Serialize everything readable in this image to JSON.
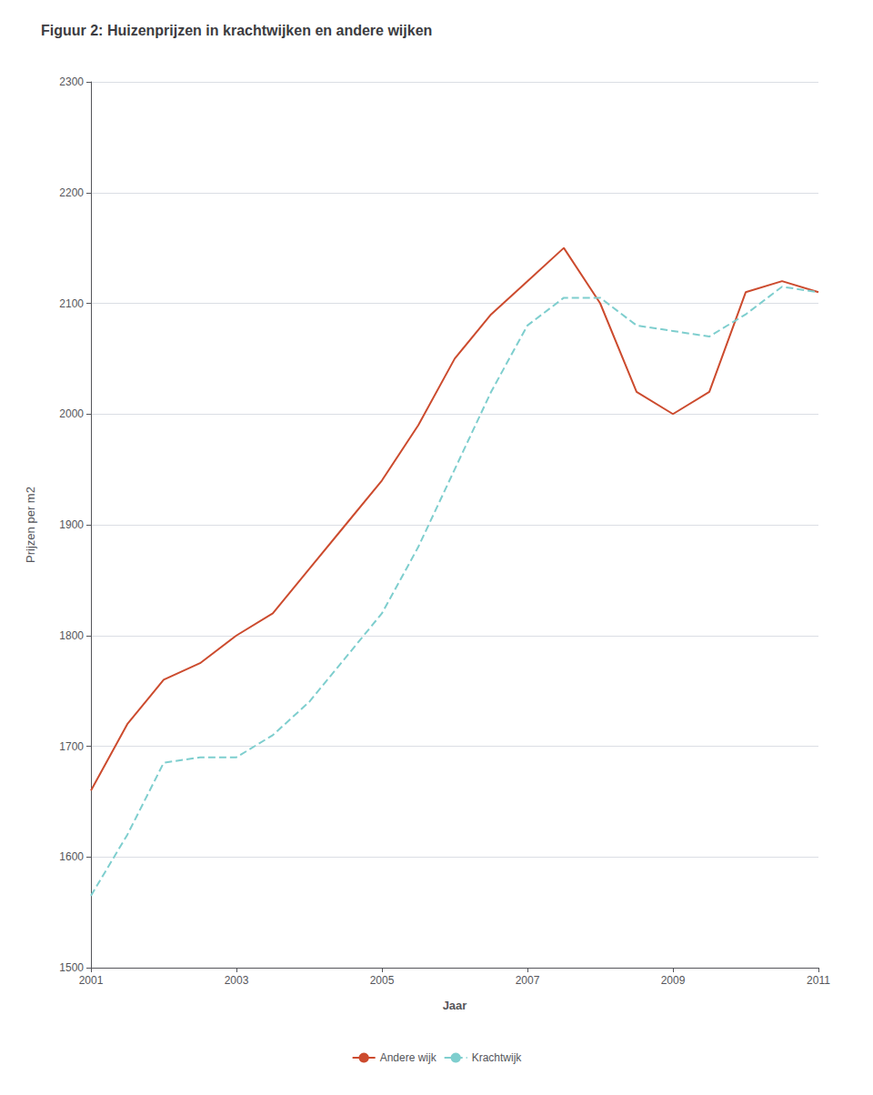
{
  "chart_data": {
    "type": "line",
    "title": "Figuur 2: Huizenprijzen in krachtwijken en andere wijken",
    "x_label": "Jaar",
    "y_label": "Prijzen per m2",
    "x": [
      2001,
      2001.5,
      2002,
      2002.5,
      2003,
      2003.5,
      2004,
      2004.5,
      2005,
      2005.5,
      2006,
      2006.5,
      2007,
      2007.5,
      2008,
      2008.5,
      2009,
      2009.5,
      2010,
      2010.5,
      2011
    ],
    "series": [
      {
        "name": "Andere wijk",
        "color": "#cc4b2e",
        "line_style": "solid",
        "values": [
          1660,
          1720,
          1760,
          1775,
          1800,
          1820,
          1860,
          1900,
          1940,
          1990,
          2050,
          2090,
          2120,
          2150,
          2100,
          2020,
          2000,
          2020,
          2110,
          2120,
          2110
        ]
      },
      {
        "name": "Krachtwijk",
        "color": "#7ecece",
        "line_style": "dashed",
        "values": [
          1565,
          1620,
          1685,
          1690,
          1690,
          1710,
          1740,
          1780,
          1820,
          1880,
          1950,
          2020,
          2080,
          2105,
          2105,
          2080,
          2075,
          2070,
          2090,
          2115,
          2110
        ]
      }
    ],
    "xlim": [
      2001,
      2011
    ],
    "xticks": [
      2001,
      2003,
      2005,
      2007,
      2009,
      2011
    ],
    "ylim": [
      1500,
      2300
    ],
    "yticks": [
      1500,
      1600,
      1700,
      1800,
      1900,
      2000,
      2100,
      2200,
      2300
    ],
    "grid": true,
    "legend": "bottom"
  }
}
